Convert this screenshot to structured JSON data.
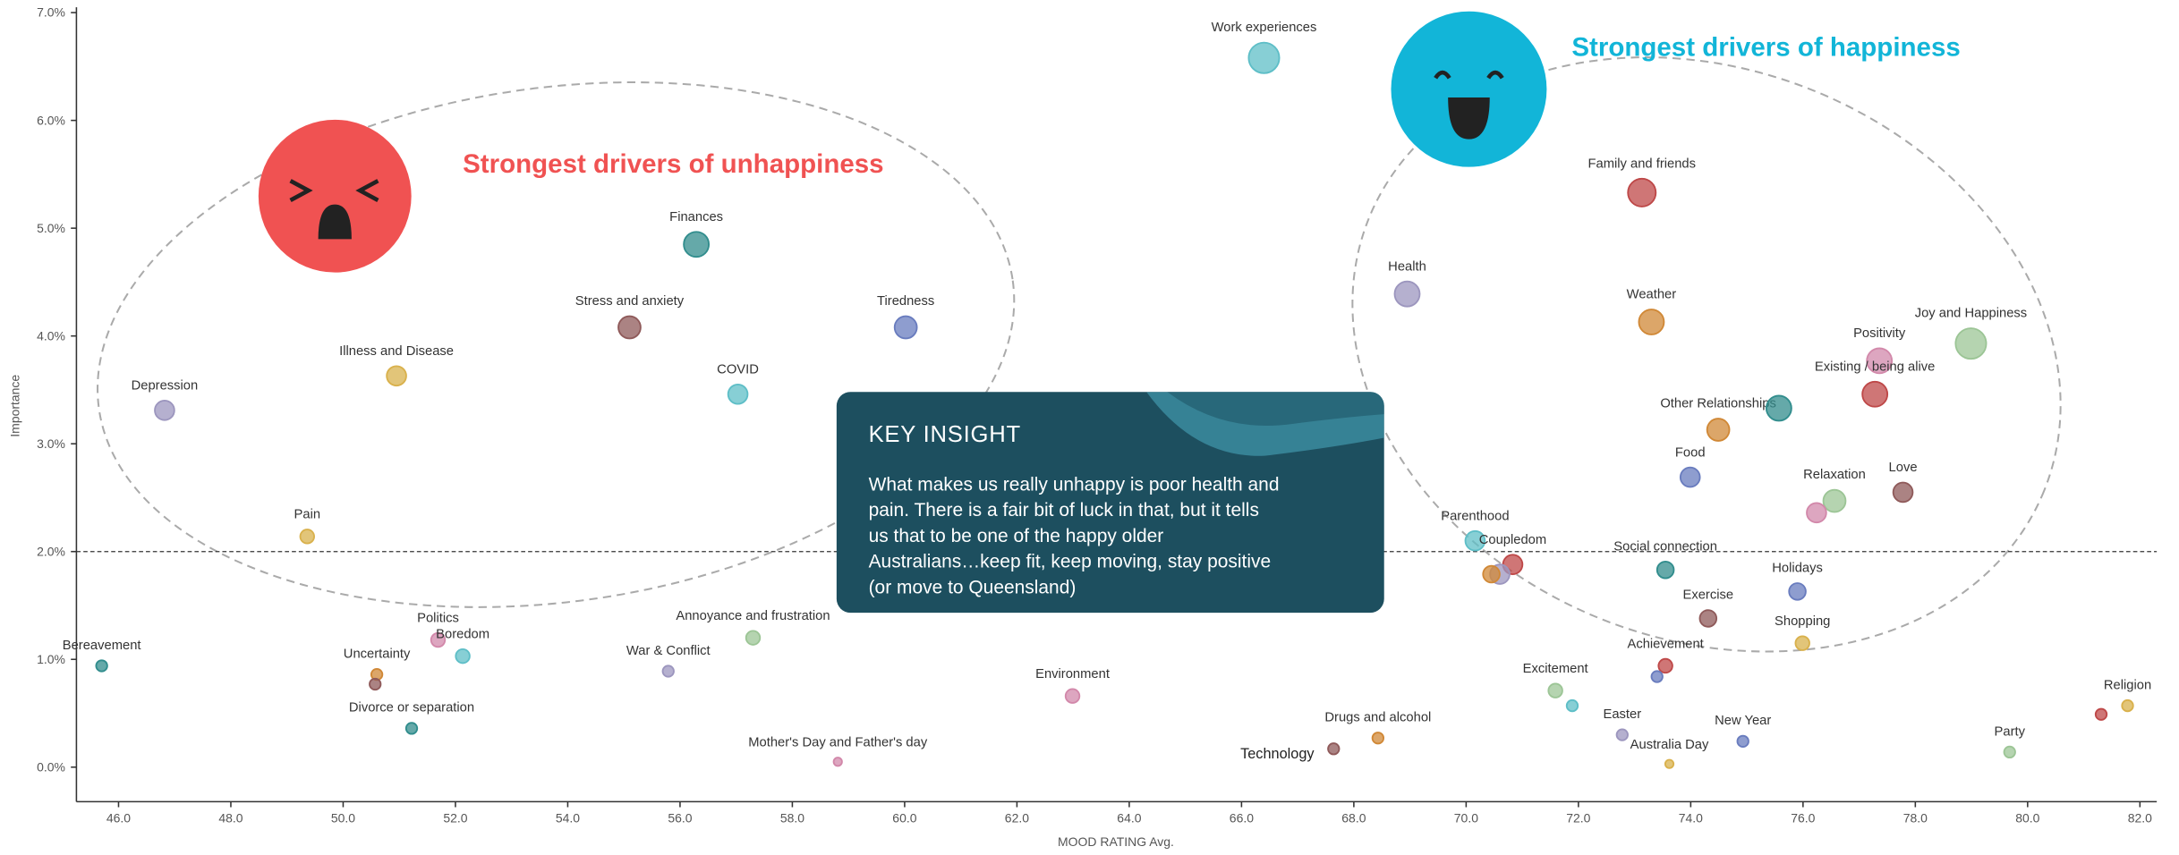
{
  "chart_data": {
    "type": "scatter",
    "x_label": "MOOD RATING Avg.",
    "y_label": "Importance",
    "annotations": {
      "unhappy": "Strongest drivers of unhappiness",
      "happy": "Strongest drivers of happiness",
      "insight_title": "KEY INSIGHT",
      "insight_lines": [
        "What makes us really unhappy is poor health and",
        "pain.  There is a fair bit of luck in that, but it tells",
        "us that to be one of the happy older",
        "Australians…keep fit, keep moving, stay positive",
        "(or move to Queensland)"
      ]
    },
    "reference_line": 2.0,
    "xlim": [
      45.25,
      82.3
    ],
    "ylim": [
      -0.32,
      7.05
    ],
    "xticks": [
      {
        "value": 46,
        "label": "46.0"
      },
      {
        "value": 48,
        "label": "48.0"
      },
      {
        "value": 50,
        "label": "50.0"
      },
      {
        "value": 52,
        "label": "52.0"
      },
      {
        "value": 54,
        "label": "54.0"
      },
      {
        "value": 56,
        "label": "56.0"
      },
      {
        "value": 58,
        "label": "58.0"
      },
      {
        "value": 60,
        "label": "60.0"
      },
      {
        "value": 62,
        "label": "62.0"
      },
      {
        "value": 64,
        "label": "64.0"
      },
      {
        "value": 66,
        "label": "66.0"
      },
      {
        "value": 68,
        "label": "68.0"
      },
      {
        "value": 70,
        "label": "70.0"
      },
      {
        "value": 72,
        "label": "72.0"
      },
      {
        "value": 74,
        "label": "74.0"
      },
      {
        "value": 76,
        "label": "76.0"
      },
      {
        "value": 78,
        "label": "78.0"
      },
      {
        "value": 80,
        "label": "80.0"
      },
      {
        "value": 82,
        "label": "82.0"
      }
    ],
    "yticks": [
      {
        "value": 0,
        "label": "0.0%"
      },
      {
        "value": 1,
        "label": "1.0%"
      },
      {
        "value": 2,
        "label": "2.0%"
      },
      {
        "value": 3,
        "label": "3.0%"
      },
      {
        "value": 4,
        "label": "4.0%"
      },
      {
        "value": 5,
        "label": "5.0%"
      },
      {
        "value": 6,
        "label": "6.0%"
      },
      {
        "value": 7,
        "label": "7.0%"
      }
    ],
    "categories": [
      "Work experiences",
      "Family and friends",
      "Finances",
      "Health",
      "Stress and anxiety",
      "Tiredness",
      "Weather",
      "Joy and Happiness",
      "Positivity",
      "Illness and Disease",
      "Existing / being alive",
      "COVID",
      "Depression",
      "Other Relationships",
      null,
      "Food",
      "Love",
      "Relaxation",
      null,
      "Parenthood",
      "Coupledom",
      null,
      null,
      "Pain",
      "Social connection",
      "Holidays",
      "Exercise",
      "Annoyance and frustration",
      "Politics",
      "Boredom",
      "Shopping",
      "Bereavement",
      "Uncertainty",
      null,
      "War & Conflict",
      "Achievement",
      null,
      "Excitement",
      null,
      "Environment",
      "Religion",
      null,
      "Divorce or separation",
      "Drugs and alcohol",
      "Easter",
      "New Year",
      "Party",
      "Technology",
      "Australia Day",
      "Mother's Day and Father's day"
    ],
    "x": [
      66.4,
      73.13,
      56.29,
      68.95,
      55.1,
      60.02,
      73.3,
      78.99,
      77.36,
      50.95,
      77.28,
      57.03,
      46.82,
      74.49,
      75.57,
      73.99,
      77.78,
      76.56,
      76.24,
      70.16,
      70.83,
      70.6,
      70.45,
      49.36,
      73.55,
      75.9,
      74.31,
      57.3,
      51.69,
      52.13,
      75.99,
      45.7,
      50.6,
      50.57,
      55.79,
      73.55,
      73.4,
      71.59,
      71.89,
      62.99,
      81.78,
      81.31,
      51.22,
      68.43,
      72.78,
      74.93,
      79.68,
      67.64,
      73.62,
      58.81
    ],
    "values": [
      6.58,
      5.33,
      4.85,
      4.39,
      4.08,
      4.08,
      4.13,
      3.93,
      3.77,
      3.63,
      3.46,
      3.46,
      3.31,
      3.13,
      3.33,
      2.69,
      2.55,
      2.47,
      2.36,
      2.1,
      1.88,
      1.79,
      1.79,
      2.14,
      1.83,
      1.63,
      1.38,
      1.2,
      1.18,
      1.03,
      1.15,
      0.94,
      0.86,
      0.77,
      0.89,
      0.94,
      0.84,
      0.71,
      0.57,
      0.66,
      0.57,
      0.49,
      0.36,
      0.27,
      0.3,
      0.24,
      0.14,
      0.17,
      0.03,
      0.05
    ],
    "sizes": [
      11,
      10,
      9,
      9,
      8,
      8,
      9,
      11,
      9,
      7,
      9,
      7,
      7,
      8,
      9,
      7,
      7,
      8,
      7,
      7,
      7,
      7,
      6,
      5,
      6,
      6,
      6,
      5,
      5,
      5,
      5,
      4,
      4,
      4,
      4,
      5,
      4,
      5,
      4,
      5,
      4,
      4,
      4,
      4,
      4,
      4,
      4,
      4,
      3,
      3
    ],
    "colors": [
      "#6fe0ea",
      "#e05555",
      "#3aa6a6",
      "#b8b0e0",
      "#a86a6a",
      "#7b92e0",
      "#f5a040",
      "#b8e8b0",
      "#f7a0c8",
      "#ffd05a",
      "#e05555",
      "#6fe0ea",
      "#b8b0e0",
      "#f5a040",
      "#3aa6a6",
      "#7b92e0",
      "#a86a6a",
      "#b8e8b0",
      "#f7a0c8",
      "#6fe0ea",
      "#e05555",
      "#b8b0e0",
      "#f5a040",
      "#ffd05a",
      "#3aa6a6",
      "#7b92e0",
      "#a86a6a",
      "#b8e8b0",
      "#f7a0c8",
      "#6fe0ea",
      "#ffd05a",
      "#3aa6a6",
      "#f5a040",
      "#a86a6a",
      "#b8b0e0",
      "#e05555",
      "#7b92e0",
      "#b8e8b0",
      "#6fe0ea",
      "#f7a0c8",
      "#ffd05a",
      "#e05555",
      "#3aa6a6",
      "#f5a040",
      "#b8b0e0",
      "#7b92e0",
      "#b8e8b0",
      "#a86a6a",
      "#ffd05a",
      "#f7a0c8"
    ]
  }
}
